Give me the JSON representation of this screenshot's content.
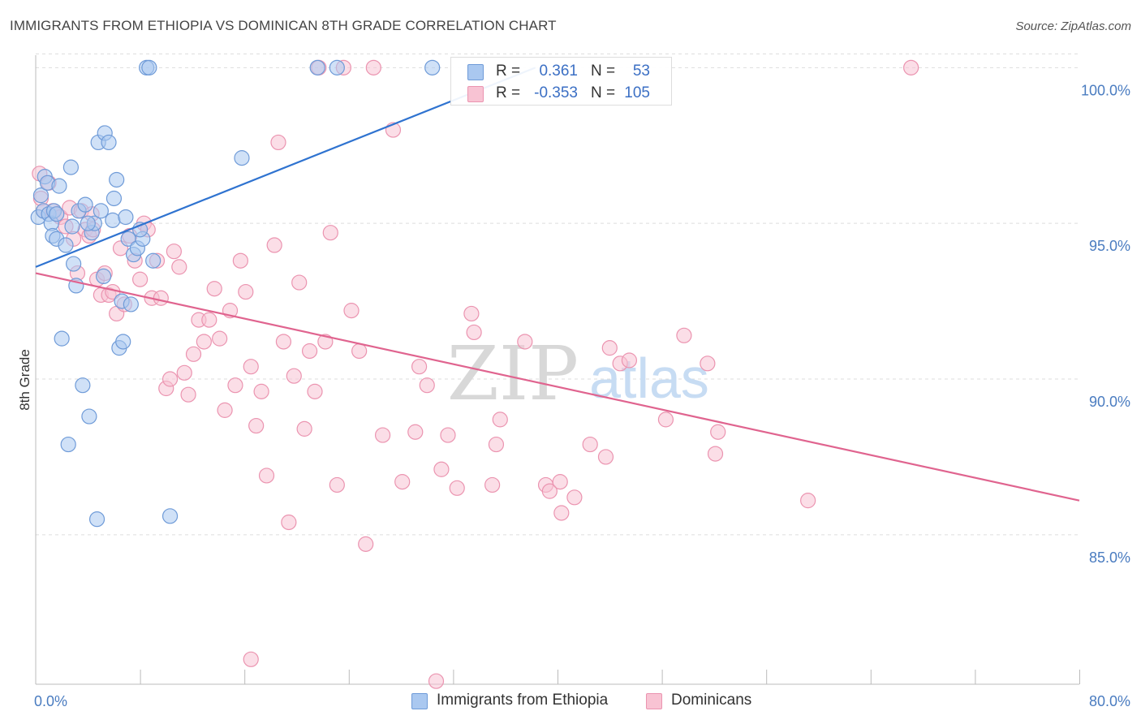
{
  "header": {
    "title": "IMMIGRANTS FROM ETHIOPIA VS DOMINICAN 8TH GRADE CORRELATION CHART",
    "source": "Source: ZipAtlas.com"
  },
  "colors": {
    "blue_fill": "#aac8f0",
    "blue_stroke": "#6f9bd8",
    "blue_line": "#2f73d0",
    "pink_fill": "#f8c3d3",
    "pink_stroke": "#eb94b0",
    "pink_line": "#e0648f",
    "tick_text": "#4a7cc0",
    "grid": "#dddddd"
  },
  "legend": {
    "rows": [
      {
        "r_label": "R =",
        "r_value": "0.361",
        "n_label": "N =",
        "n_value": "53"
      },
      {
        "r_label": "R =",
        "r_value": "-0.353",
        "n_label": "N =",
        "n_value": "105"
      }
    ]
  },
  "bottom_legend": {
    "items": [
      {
        "label": "Immigrants from Ethiopia"
      },
      {
        "label": "Dominicans"
      }
    ]
  },
  "watermark": {
    "zip": "ZIP",
    "atlas": "atlas"
  },
  "chart_data": {
    "type": "scatter",
    "title": "IMMIGRANTS FROM ETHIOPIA VS DOMINICAN 8TH GRADE CORRELATION CHART",
    "xlabel": "",
    "ylabel": "8th Grade",
    "xlim": [
      0,
      80
    ],
    "ylim": [
      80.2,
      100.4
    ],
    "x_tick_labels": [
      {
        "value": 0,
        "label": "0.0%"
      },
      {
        "value": 80,
        "label": "80.0%"
      }
    ],
    "y_tick_labels": [
      {
        "value": 100,
        "label": "100.0%"
      },
      {
        "value": 95,
        "label": "95.0%"
      },
      {
        "value": 90,
        "label": "90.0%"
      },
      {
        "value": 85,
        "label": "85.0%"
      }
    ],
    "x_minor_ticks": [
      8,
      16,
      24,
      32,
      40,
      48,
      56,
      64,
      72,
      80
    ],
    "series": [
      {
        "name": "Immigrants from Ethiopia",
        "R": 0.361,
        "N": 53,
        "trend": {
          "x": [
            0,
            38.3
          ],
          "y": [
            93.6,
            100.0
          ]
        },
        "points": [
          [
            0.2,
            95.2
          ],
          [
            0.4,
            95.9
          ],
          [
            0.6,
            95.4
          ],
          [
            0.7,
            96.5
          ],
          [
            0.9,
            96.3
          ],
          [
            1.0,
            95.3
          ],
          [
            1.2,
            95.0
          ],
          [
            1.3,
            94.6
          ],
          [
            1.4,
            95.4
          ],
          [
            1.6,
            94.5
          ],
          [
            1.8,
            96.2
          ],
          [
            2.0,
            91.3
          ],
          [
            2.3,
            94.3
          ],
          [
            2.5,
            87.9
          ],
          [
            2.7,
            96.8
          ],
          [
            2.9,
            93.7
          ],
          [
            3.1,
            93.0
          ],
          [
            3.3,
            95.4
          ],
          [
            3.6,
            89.8
          ],
          [
            3.8,
            95.6
          ],
          [
            4.1,
            88.8
          ],
          [
            4.3,
            94.7
          ],
          [
            4.5,
            95.0
          ],
          [
            4.7,
            85.5
          ],
          [
            4.8,
            97.6
          ],
          [
            5.0,
            95.4
          ],
          [
            5.2,
            93.3
          ],
          [
            5.3,
            97.9
          ],
          [
            5.6,
            97.6
          ],
          [
            5.9,
            95.1
          ],
          [
            6.0,
            95.8
          ],
          [
            6.2,
            96.4
          ],
          [
            6.4,
            91.0
          ],
          [
            6.6,
            92.5
          ],
          [
            6.7,
            91.2
          ],
          [
            6.9,
            95.2
          ],
          [
            7.1,
            94.5
          ],
          [
            7.3,
            92.4
          ],
          [
            7.5,
            94.0
          ],
          [
            7.8,
            94.2
          ],
          [
            8.2,
            94.5
          ],
          [
            8.5,
            100.0
          ],
          [
            8.7,
            100.0
          ],
          [
            9.0,
            93.8
          ],
          [
            10.3,
            85.6
          ],
          [
            15.8,
            97.1
          ],
          [
            21.6,
            100.0
          ],
          [
            23.1,
            100.0
          ],
          [
            30.4,
            100.0
          ],
          [
            1.6,
            95.3
          ],
          [
            2.8,
            94.9
          ],
          [
            4.0,
            95.0
          ],
          [
            8.0,
            94.8
          ]
        ]
      },
      {
        "name": "Dominicans",
        "R": -0.353,
        "N": 105,
        "trend": {
          "x": [
            0,
            80
          ],
          "y": [
            93.4,
            86.1
          ]
        },
        "points": [
          [
            0.3,
            96.6
          ],
          [
            0.4,
            95.8
          ],
          [
            0.6,
            95.4
          ],
          [
            1.0,
            96.3
          ],
          [
            1.3,
            95.4
          ],
          [
            1.6,
            95.3
          ],
          [
            1.9,
            95.2
          ],
          [
            2.3,
            94.9
          ],
          [
            2.6,
            95.5
          ],
          [
            2.9,
            94.5
          ],
          [
            3.2,
            93.4
          ],
          [
            3.5,
            95.4
          ],
          [
            3.8,
            94.8
          ],
          [
            4.1,
            94.6
          ],
          [
            4.4,
            94.8
          ],
          [
            4.7,
            93.2
          ],
          [
            5.0,
            92.7
          ],
          [
            5.3,
            93.4
          ],
          [
            5.6,
            92.7
          ],
          [
            5.9,
            92.8
          ],
          [
            6.2,
            92.1
          ],
          [
            6.5,
            94.2
          ],
          [
            6.8,
            92.4
          ],
          [
            7.2,
            94.6
          ],
          [
            7.6,
            93.8
          ],
          [
            8.0,
            93.2
          ],
          [
            8.3,
            95.0
          ],
          [
            8.6,
            94.8
          ],
          [
            8.9,
            92.6
          ],
          [
            9.3,
            93.8
          ],
          [
            9.6,
            92.6
          ],
          [
            10.0,
            89.7
          ],
          [
            10.3,
            90.0
          ],
          [
            10.6,
            94.1
          ],
          [
            11.0,
            93.6
          ],
          [
            11.4,
            90.2
          ],
          [
            11.7,
            89.5
          ],
          [
            12.1,
            90.8
          ],
          [
            12.5,
            91.9
          ],
          [
            12.9,
            91.2
          ],
          [
            13.3,
            91.9
          ],
          [
            13.7,
            92.9
          ],
          [
            14.1,
            91.3
          ],
          [
            14.5,
            89.0
          ],
          [
            14.9,
            92.2
          ],
          [
            15.3,
            89.8
          ],
          [
            15.7,
            93.8
          ],
          [
            16.1,
            92.8
          ],
          [
            16.5,
            90.4
          ],
          [
            16.9,
            88.5
          ],
          [
            17.3,
            89.6
          ],
          [
            17.7,
            86.9
          ],
          [
            18.3,
            94.3
          ],
          [
            18.6,
            97.6
          ],
          [
            19.0,
            91.2
          ],
          [
            19.4,
            85.4
          ],
          [
            19.8,
            90.1
          ],
          [
            20.2,
            93.1
          ],
          [
            20.6,
            88.4
          ],
          [
            21.0,
            90.9
          ],
          [
            21.4,
            89.6
          ],
          [
            21.7,
            100.0
          ],
          [
            22.2,
            91.2
          ],
          [
            22.6,
            94.7
          ],
          [
            23.1,
            86.6
          ],
          [
            23.6,
            100.0
          ],
          [
            24.2,
            92.2
          ],
          [
            24.8,
            90.9
          ],
          [
            25.3,
            84.7
          ],
          [
            25.9,
            100.0
          ],
          [
            26.6,
            88.2
          ],
          [
            27.4,
            98.0
          ],
          [
            28.1,
            86.7
          ],
          [
            29.1,
            88.3
          ],
          [
            29.4,
            90.4
          ],
          [
            30.0,
            89.8
          ],
          [
            31.1,
            87.1
          ],
          [
            31.6,
            88.2
          ],
          [
            32.3,
            86.5
          ],
          [
            33.4,
            92.1
          ],
          [
            33.6,
            91.5
          ],
          [
            35.0,
            86.6
          ],
          [
            35.3,
            87.9
          ],
          [
            35.6,
            88.7
          ],
          [
            37.5,
            91.2
          ],
          [
            39.1,
            86.6
          ],
          [
            39.4,
            86.4
          ],
          [
            40.2,
            86.7
          ],
          [
            40.3,
            85.7
          ],
          [
            41.3,
            86.2
          ],
          [
            42.5,
            87.9
          ],
          [
            43.7,
            87.5
          ],
          [
            44.0,
            91.0
          ],
          [
            44.8,
            90.5
          ],
          [
            48.3,
            88.7
          ],
          [
            49.7,
            91.4
          ],
          [
            51.5,
            90.5
          ],
          [
            52.1,
            87.6
          ],
          [
            52.3,
            88.3
          ],
          [
            59.2,
            86.1
          ],
          [
            67.1,
            100.0
          ],
          [
            16.5,
            81.0
          ],
          [
            30.7,
            80.3
          ],
          [
            45.5,
            90.6
          ],
          [
            4.3,
            95.3
          ]
        ]
      }
    ]
  }
}
